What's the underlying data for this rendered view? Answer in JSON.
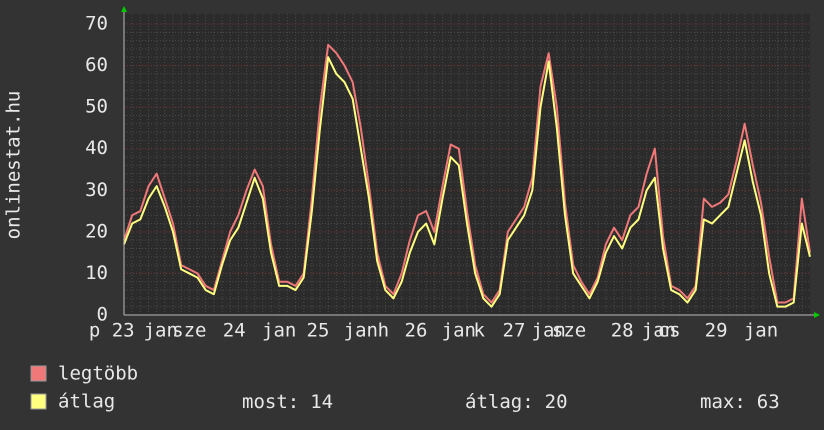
{
  "chart_data": {
    "type": "line",
    "y_label": "onlinestat.hu",
    "x": [
      0,
      2,
      4,
      6,
      8,
      10,
      12,
      14,
      16,
      18,
      20,
      22,
      24,
      26,
      28,
      30,
      32,
      34,
      36,
      38,
      40,
      42,
      44,
      46,
      48,
      50,
      52,
      54,
      56,
      58,
      60,
      62,
      64,
      66,
      68,
      70,
      72,
      74,
      76,
      78,
      80,
      82,
      84,
      86,
      88,
      90,
      92,
      94,
      96,
      98,
      100,
      102,
      104,
      106,
      108,
      110,
      112,
      114,
      116,
      118,
      120,
      122,
      124,
      126,
      128,
      130,
      132,
      134,
      136,
      138,
      140,
      142,
      144,
      146,
      148,
      150,
      152,
      154,
      156,
      158,
      160,
      162,
      164,
      166,
      168
    ],
    "xlim": [
      0,
      168
    ],
    "xticks": [
      {
        "value": -3,
        "label": "p 23"
      },
      {
        "value": 9,
        "label": "jan"
      },
      {
        "value": 16,
        "label": "sze"
      },
      {
        "value": 27,
        "label": "24"
      },
      {
        "value": 38,
        "label": "jan"
      },
      {
        "value": 47.5,
        "label": "25"
      },
      {
        "value": 58,
        "label": "jan"
      },
      {
        "value": 63.5,
        "label": "h"
      },
      {
        "value": 71.5,
        "label": "26"
      },
      {
        "value": 82,
        "label": "jan"
      },
      {
        "value": 87,
        "label": "k"
      },
      {
        "value": 95.5,
        "label": "27"
      },
      {
        "value": 104,
        "label": "jan"
      },
      {
        "value": 109,
        "label": "sze"
      },
      {
        "value": 122,
        "label": "28"
      },
      {
        "value": 131,
        "label": "jan"
      },
      {
        "value": 133.5,
        "label": "cs"
      },
      {
        "value": 145,
        "label": "29"
      },
      {
        "value": 156,
        "label": "jan"
      }
    ],
    "ylim": [
      0,
      70
    ],
    "yticks": [
      0,
      10,
      20,
      30,
      40,
      50,
      60,
      70
    ],
    "grid": true,
    "series": [
      {
        "name": "legtöbb",
        "color": "#f07878",
        "values": [
          18,
          24,
          25,
          31,
          34,
          28,
          22,
          12,
          11,
          10,
          7,
          6,
          13,
          20,
          24,
          30,
          35,
          31,
          17,
          8,
          8,
          7,
          10,
          28,
          50,
          65,
          63,
          60,
          56,
          45,
          31,
          15,
          7,
          5,
          10,
          18,
          24,
          25,
          20,
          31,
          41,
          40,
          25,
          12,
          5,
          3,
          6,
          20,
          23,
          26,
          33,
          55,
          63,
          50,
          27,
          12,
          8,
          5,
          9,
          17,
          21,
          18,
          24,
          26,
          34,
          40,
          19,
          7,
          6,
          4,
          7,
          28,
          26,
          27,
          29,
          37,
          46,
          36,
          27,
          14,
          3,
          3,
          4,
          28,
          15
        ]
      },
      {
        "name": "átlag",
        "color": "#ffff80",
        "values": [
          17,
          22,
          23,
          28,
          31,
          26,
          20,
          11,
          10,
          9,
          6,
          5,
          12,
          18,
          21,
          27,
          33,
          28,
          15,
          7,
          7,
          6,
          9,
          25,
          45,
          62,
          58,
          56,
          52,
          40,
          28,
          13,
          6,
          4,
          8,
          15,
          20,
          22,
          17,
          28,
          38,
          36,
          22,
          10,
          4,
          2,
          5,
          18,
          21,
          24,
          30,
          50,
          61,
          45,
          24,
          10,
          7,
          4,
          8,
          15,
          19,
          16,
          21,
          23,
          30,
          33,
          16,
          6,
          5,
          3,
          6,
          23,
          22,
          24,
          26,
          34,
          42,
          32,
          24,
          10,
          2,
          2,
          3,
          22,
          14
        ]
      }
    ],
    "stats": [
      {
        "label": "most:",
        "value": 14
      },
      {
        "label": "átlag:",
        "value": 20
      },
      {
        "label": "max:",
        "value": 63
      }
    ]
  }
}
